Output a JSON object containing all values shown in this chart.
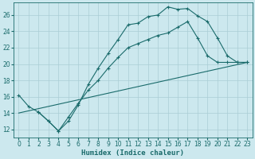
{
  "xlabel": "Humidex (Indice chaleur)",
  "xlim": [
    -0.5,
    23.5
  ],
  "ylim": [
    11,
    27.5
  ],
  "bg_color": "#cce8ee",
  "line_color": "#1a6b6b",
  "grid_color": "#aacdd5",
  "line1_x": [
    0,
    1,
    2,
    3,
    4,
    5,
    6,
    7,
    8,
    9,
    10,
    11,
    12,
    13,
    14,
    15,
    16,
    17,
    18,
    19,
    20,
    21,
    22,
    23
  ],
  "line1_y": [
    16.2,
    14.8,
    14.1,
    13.0,
    11.8,
    13.0,
    15.0,
    17.5,
    19.5,
    21.3,
    23.0,
    24.8,
    25.0,
    25.8,
    26.0,
    27.0,
    26.7,
    26.8,
    25.9,
    25.2,
    23.2,
    21.0,
    20.2,
    20.2
  ],
  "line2_x": [
    2,
    3,
    4,
    5,
    6,
    7,
    8,
    9,
    10,
    11,
    12,
    13,
    14,
    15,
    16,
    17,
    18,
    19,
    20,
    21,
    22,
    23
  ],
  "line2_y": [
    14.1,
    13.0,
    11.8,
    13.5,
    15.2,
    16.8,
    18.0,
    19.5,
    20.8,
    22.0,
    22.5,
    23.0,
    23.5,
    23.8,
    24.5,
    25.2,
    23.2,
    21.0,
    20.2,
    20.2,
    20.2,
    20.2
  ],
  "line3_x": [
    0,
    23
  ],
  "line3_y": [
    14.0,
    20.2
  ],
  "xticks": [
    0,
    1,
    2,
    3,
    4,
    5,
    6,
    7,
    8,
    9,
    10,
    11,
    12,
    13,
    14,
    15,
    16,
    17,
    18,
    19,
    20,
    21,
    22,
    23
  ],
  "yticks": [
    12,
    14,
    16,
    18,
    20,
    22,
    24,
    26
  ]
}
